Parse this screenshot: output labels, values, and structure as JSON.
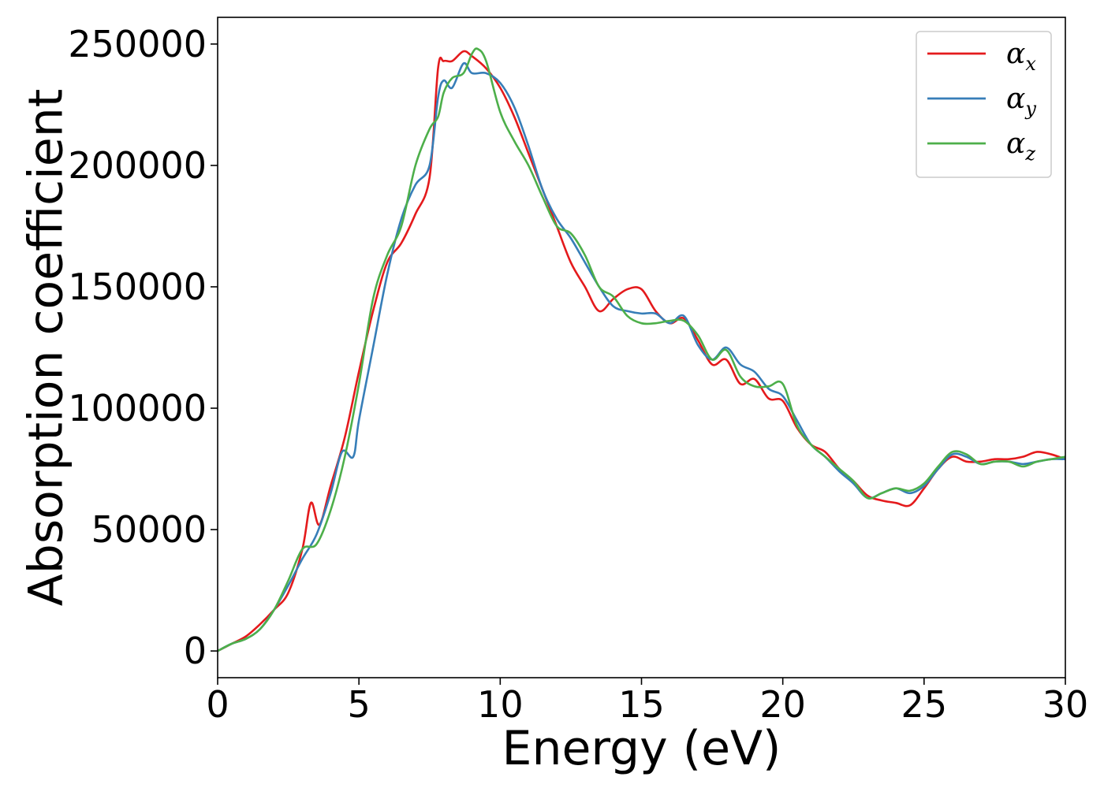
{
  "chart_data": {
    "type": "line",
    "xlabel": "Energy (eV)",
    "ylabel": "Absorption coefficient",
    "xlim": [
      0,
      30
    ],
    "ylim": [
      -11000,
      261000
    ],
    "xticks": [
      0,
      5,
      10,
      15,
      20,
      25,
      30
    ],
    "yticks": [
      0,
      50000,
      100000,
      150000,
      200000,
      250000
    ],
    "grid": false,
    "legend_position": "top-right",
    "series": [
      {
        "name": "α_x",
        "label_main": "α",
        "label_sub": "x",
        "color": "#e41a1c",
        "x": [
          0,
          0.5,
          1.0,
          1.5,
          2.0,
          2.5,
          3.0,
          3.3,
          3.6,
          4.0,
          4.5,
          5.0,
          5.5,
          6.0,
          6.5,
          7.0,
          7.5,
          7.8,
          8.0,
          8.3,
          8.7,
          9.0,
          9.5,
          10.0,
          10.5,
          11.0,
          11.5,
          12.0,
          12.5,
          13.0,
          13.5,
          14.0,
          14.5,
          15.0,
          15.5,
          16.0,
          16.5,
          17.0,
          17.5,
          18.0,
          18.5,
          19.0,
          19.5,
          20.0,
          20.5,
          21.0,
          21.5,
          22.0,
          22.5,
          23.0,
          23.5,
          24.0,
          24.5,
          25.0,
          25.5,
          26.0,
          26.5,
          27.0,
          27.5,
          28.0,
          28.5,
          29.0,
          29.5,
          30.0
        ],
        "y": [
          0,
          3000,
          6000,
          11000,
          17000,
          24000,
          42000,
          61000,
          52000,
          68000,
          88000,
          115000,
          140000,
          160000,
          168000,
          180000,
          195000,
          240000,
          243000,
          243000,
          247000,
          245000,
          240000,
          232000,
          220000,
          205000,
          190000,
          175000,
          160000,
          150000,
          140000,
          145000,
          149000,
          149000,
          140000,
          135000,
          137000,
          128000,
          118000,
          120000,
          110000,
          112000,
          104000,
          103000,
          92000,
          85000,
          82000,
          75000,
          70000,
          64000,
          62000,
          61000,
          60000,
          67000,
          75000,
          80000,
          78000,
          78000,
          79000,
          79000,
          80000,
          82000,
          81000,
          79000
        ]
      },
      {
        "name": "α_y",
        "label_main": "α",
        "label_sub": "y",
        "color": "#377eb8",
        "x": [
          0,
          0.5,
          1.0,
          1.5,
          2.0,
          2.5,
          3.0,
          3.5,
          4.0,
          4.4,
          4.8,
          5.0,
          5.5,
          6.0,
          6.5,
          7.0,
          7.5,
          7.8,
          8.0,
          8.3,
          8.7,
          9.0,
          9.5,
          10.0,
          10.5,
          11.0,
          11.5,
          12.0,
          12.5,
          13.0,
          13.5,
          14.0,
          14.5,
          15.0,
          15.5,
          16.0,
          16.5,
          17.0,
          17.5,
          18.0,
          18.5,
          19.0,
          19.5,
          20.0,
          20.5,
          21.0,
          21.5,
          22.0,
          22.5,
          23.0,
          23.5,
          24.0,
          24.5,
          25.0,
          25.5,
          26.0,
          26.5,
          27.0,
          27.5,
          28.0,
          28.5,
          29.0,
          29.5,
          30.0
        ],
        "y": [
          0,
          3000,
          5000,
          9000,
          17000,
          27000,
          38000,
          48000,
          65000,
          82000,
          80000,
          95000,
          125000,
          155000,
          178000,
          192000,
          200000,
          228000,
          235000,
          232000,
          242000,
          238000,
          238000,
          234000,
          224000,
          208000,
          190000,
          178000,
          170000,
          160000,
          150000,
          142000,
          140000,
          139000,
          139000,
          135000,
          138000,
          126000,
          120000,
          125000,
          118000,
          115000,
          108000,
          105000,
          95000,
          85000,
          80000,
          74000,
          69000,
          63000,
          65000,
          67000,
          65000,
          68000,
          75000,
          81000,
          80000,
          77000,
          78000,
          78000,
          77000,
          78000,
          79000,
          79000
        ]
      },
      {
        "name": "α_z",
        "label_main": "α",
        "label_sub": "z",
        "color": "#4daf4a",
        "x": [
          0,
          0.5,
          1.0,
          1.5,
          2.0,
          2.5,
          3.0,
          3.5,
          4.0,
          4.5,
          5.0,
          5.5,
          6.0,
          6.5,
          7.0,
          7.5,
          7.8,
          8.0,
          8.3,
          8.7,
          9.0,
          9.2,
          9.5,
          10.0,
          10.5,
          11.0,
          11.5,
          12.0,
          12.5,
          13.0,
          13.5,
          14.0,
          14.5,
          15.0,
          15.5,
          16.0,
          16.5,
          17.0,
          17.5,
          18.0,
          18.5,
          19.0,
          19.5,
          20.0,
          20.5,
          21.0,
          21.5,
          22.0,
          22.5,
          23.0,
          23.5,
          24.0,
          24.5,
          25.0,
          25.5,
          26.0,
          26.5,
          27.0,
          27.5,
          28.0,
          28.5,
          29.0,
          29.5,
          30.0
        ],
        "y": [
          0,
          3000,
          5000,
          9000,
          17000,
          29000,
          42000,
          44000,
          58000,
          80000,
          110000,
          145000,
          163000,
          175000,
          200000,
          215000,
          220000,
          230000,
          236000,
          238000,
          246000,
          248000,
          243000,
          222000,
          210000,
          200000,
          187000,
          175000,
          172000,
          163000,
          150000,
          146000,
          138000,
          135000,
          135000,
          136000,
          136000,
          130000,
          120000,
          124000,
          113000,
          109000,
          109000,
          110000,
          93000,
          85000,
          80000,
          75000,
          70000,
          63000,
          65000,
          67000,
          66000,
          69000,
          76000,
          82000,
          81000,
          77000,
          78000,
          78000,
          76000,
          78000,
          79000,
          80000
        ]
      }
    ]
  }
}
